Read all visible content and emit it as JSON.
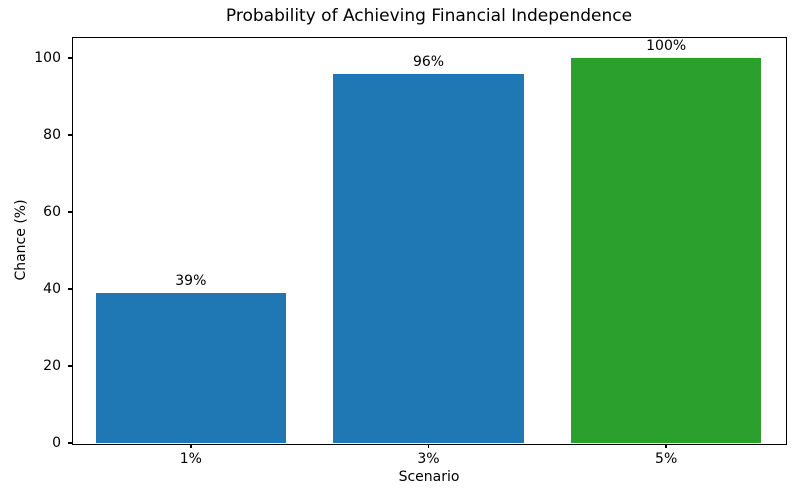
{
  "chart_data": {
    "type": "bar",
    "title": "Probability of Achieving Financial Independence",
    "xlabel": "Scenario",
    "ylabel": "Chance (%)",
    "categories": [
      "1%",
      "3%",
      "5%"
    ],
    "values": [
      39,
      96,
      100
    ],
    "bar_labels": [
      "39%",
      "96%",
      "100%"
    ],
    "bar_colors": [
      "#1f77b4",
      "#1f77b4",
      "#2ca02c"
    ],
    "yticks": [
      0,
      20,
      40,
      60,
      80,
      100
    ],
    "ylim": [
      0,
      105.5
    ],
    "grid": false,
    "legend_position": "none",
    "spine_color": "#000000",
    "background_color": "#ffffff"
  }
}
